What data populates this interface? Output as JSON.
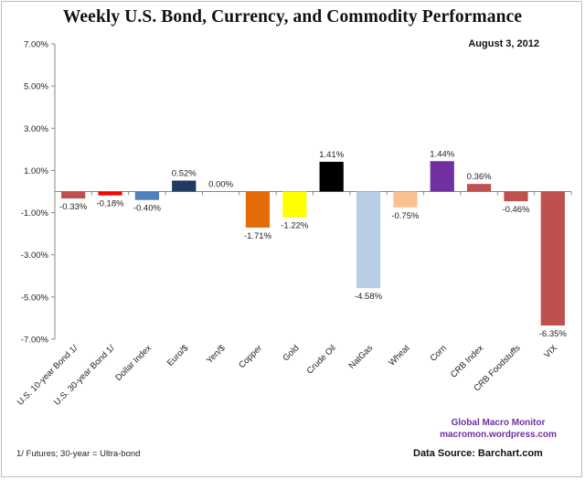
{
  "chart_data": {
    "type": "bar",
    "title": "Weekly U.S. Bond, Currency, and Commodity Performance",
    "date": "August 3, 2012",
    "categories": [
      "U.S. 10-year Bond 1/",
      "U.S. 30-year Bond 1/",
      "Dollar Index",
      "Euro/$",
      "Yen/$",
      "Copper",
      "Gold",
      "Crude Oil",
      "NatGas",
      "Wheat",
      "Corn",
      "CRB Index",
      "CRB Foodstuffs",
      "VIX"
    ],
    "values": [
      -0.33,
      -0.18,
      -0.4,
      0.52,
      0.0,
      -1.71,
      -1.22,
      1.41,
      -4.58,
      -0.75,
      1.44,
      0.36,
      -0.46,
      -6.35
    ],
    "value_labels": [
      "-0.33%",
      "-0.18%",
      "-0.40%",
      "0.52%",
      "0.00%",
      "-1.71%",
      "-1.22%",
      "1.41%",
      "-4.58%",
      "-0.75%",
      "1.44%",
      "0.36%",
      "-0.46%",
      "-6.35%"
    ],
    "colors": [
      "#c0504d",
      "#ff0000",
      "#4f81bd",
      "#1f3864",
      "#1f3864",
      "#e36c09",
      "#ffff00",
      "#000000",
      "#b9cde5",
      "#fac090",
      "#7030a0",
      "#c0504d",
      "#c0504d",
      "#c0504d"
    ],
    "y_ticks": [
      7,
      5,
      3,
      1,
      -1,
      -3,
      -5,
      -7
    ],
    "y_tick_labels": [
      "7.00%",
      "5.00%",
      "3.00%",
      "1.00%",
      "-1.00%",
      "-3.00%",
      "-5.00%",
      "-7.00%"
    ],
    "ylim": [
      -7,
      7
    ],
    "xlabel": "",
    "ylabel": "",
    "grid": false,
    "legend": "none"
  },
  "annotations": {
    "watermark_line1": "Global Macro Monitor",
    "watermark_line2": "macromon.wordpress.com",
    "footnote": "1/  Futures; 30-year = Ultra-bond",
    "source": "Data Source:  Barchart.com"
  }
}
